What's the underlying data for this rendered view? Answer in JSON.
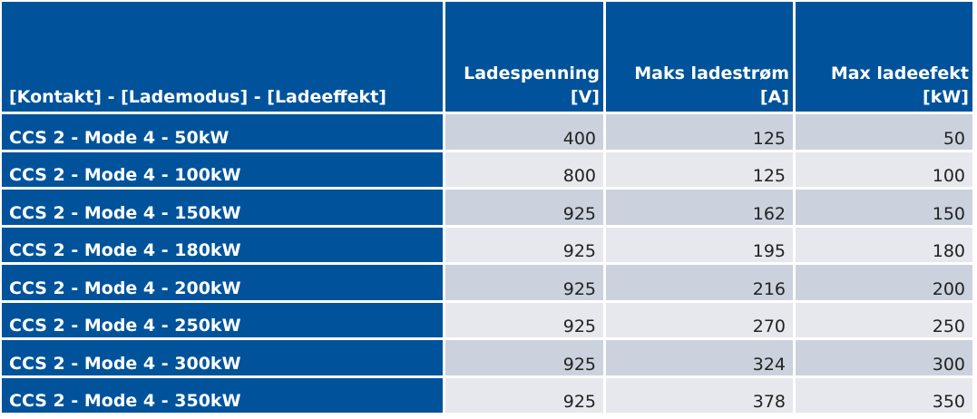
{
  "headers": {
    "col1": "[Kontakt] - [Lademodus] - [Ladeeffekt]",
    "col2_line1": "Ladespenning",
    "col2_line2": "[V]",
    "col3_line1": "Maks ladestrøm",
    "col3_line2": "[A]",
    "col4_line1": "Max ladeefekt",
    "col4_line2": "[kW]"
  },
  "rows": [
    {
      "label": "CCS 2 - Mode 4 - 50kW",
      "voltage": "400",
      "current": "125",
      "power": "50"
    },
    {
      "label": "CCS 2 - Mode 4 - 100kW",
      "voltage": "800",
      "current": "125",
      "power": "100"
    },
    {
      "label": "CCS 2 - Mode 4 - 150kW",
      "voltage": "925",
      "current": "162",
      "power": "150"
    },
    {
      "label": "CCS 2 - Mode 4 - 180kW",
      "voltage": "925",
      "current": "195",
      "power": "180"
    },
    {
      "label": "CCS 2 - Mode 4 - 200kW",
      "voltage": "925",
      "current": "216",
      "power": "200"
    },
    {
      "label": "CCS 2 - Mode 4 - 250kW",
      "voltage": "925",
      "current": "270",
      "power": "250"
    },
    {
      "label": "CCS 2 - Mode 4 - 300kW",
      "voltage": "925",
      "current": "324",
      "power": "300"
    },
    {
      "label": "CCS 2 - Mode 4 - 350kW",
      "voltage": "925",
      "current": "378",
      "power": "350"
    }
  ],
  "colors": {
    "header_bg": "#00539b",
    "row_odd_bg": "#cbd1dd",
    "row_even_bg": "#e6e8ed"
  }
}
